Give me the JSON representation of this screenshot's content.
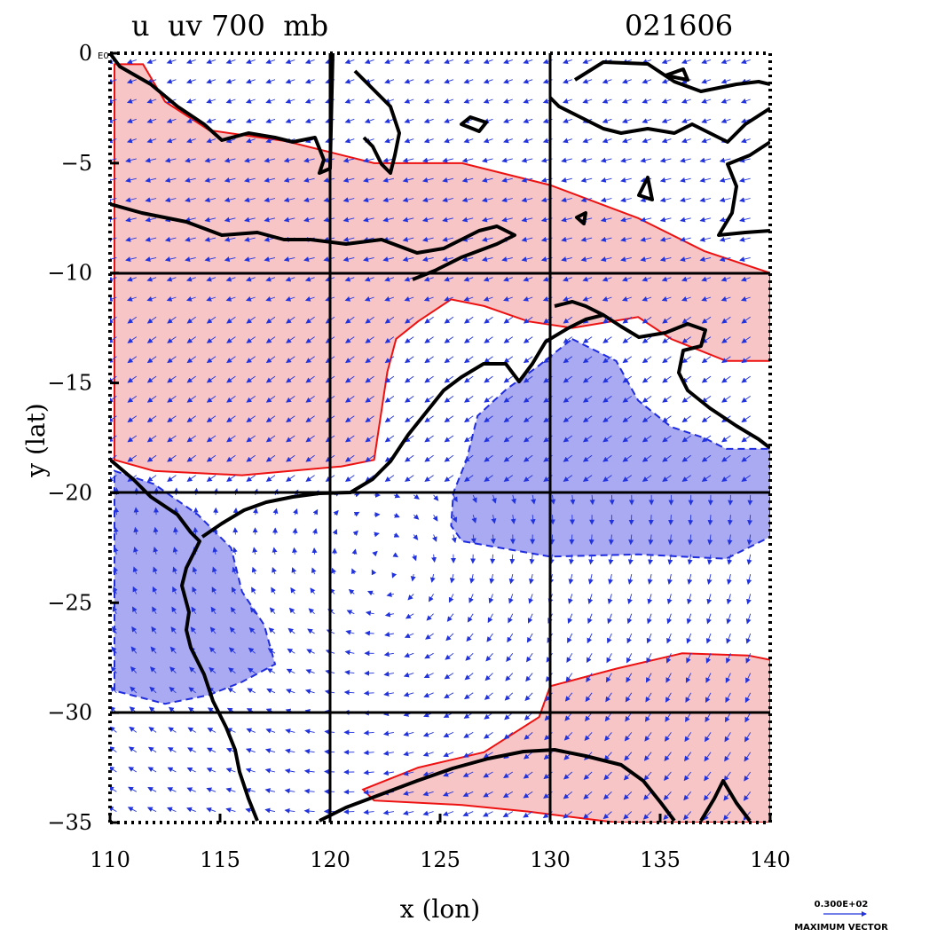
{
  "title": {
    "left": "u  uv 700  mb",
    "right": "021606"
  },
  "axes": {
    "xlabel": "x (lon)",
    "ylabel": "y (lat)",
    "x_ticks": [
      "110",
      "115",
      "120",
      "125",
      "130",
      "135",
      "140"
    ],
    "y_ticks": [
      "0",
      "−5",
      "−10",
      "−15",
      "−20",
      "−25",
      "−30",
      "−35"
    ],
    "corner_exponent": "E0"
  },
  "legend": {
    "value": "0.300E+02",
    "label": "MAXIMUM VECTOR"
  },
  "colors": {
    "positive_fill": "#f7c5c5",
    "positive_line": "#ee1111",
    "negative_fill": "#a9aaf2",
    "negative_line": "#1f2ce0",
    "vector": "#2233dd",
    "coast": "#000000"
  },
  "chart_data": {
    "type": "map",
    "xlim": [
      110,
      140
    ],
    "ylim": [
      -35,
      0
    ],
    "grid_lines": {
      "lon": [
        120,
        130
      ],
      "lat": [
        -10,
        -20,
        -30
      ]
    },
    "field": "u wind (700 mb) with uv vectors",
    "positive_regions": [
      {
        "name": "north band",
        "polygon": [
          [
            110.2,
            -0.5
          ],
          [
            111.5,
            -0.5
          ],
          [
            112.5,
            -2.2
          ],
          [
            114.5,
            -3.5
          ],
          [
            118,
            -4
          ],
          [
            122,
            -5
          ],
          [
            126,
            -5
          ],
          [
            130,
            -6
          ],
          [
            134,
            -7.5
          ],
          [
            137,
            -9
          ],
          [
            140,
            -10
          ],
          [
            140,
            -14
          ],
          [
            138,
            -14
          ],
          [
            135.5,
            -13
          ],
          [
            134,
            -12
          ],
          [
            131,
            -12.5
          ],
          [
            129,
            -12.2
          ],
          [
            127,
            -11.5
          ],
          [
            125.5,
            -11.2
          ],
          [
            124,
            -12.2
          ],
          [
            123,
            -13
          ],
          [
            122.6,
            -14.5
          ],
          [
            122,
            -18.5
          ],
          [
            120.5,
            -18.8
          ],
          [
            116,
            -19.2
          ],
          [
            112,
            -19
          ],
          [
            110.2,
            -18.5
          ]
        ]
      },
      {
        "name": "south band",
        "polygon": [
          [
            130,
            -28.8
          ],
          [
            133,
            -28
          ],
          [
            136,
            -27.3
          ],
          [
            139,
            -27.4
          ],
          [
            140,
            -27.6
          ],
          [
            140,
            -35
          ],
          [
            133,
            -35
          ],
          [
            129,
            -34.5
          ],
          [
            126,
            -34.2
          ],
          [
            122,
            -34
          ],
          [
            121.5,
            -33.5
          ],
          [
            124,
            -32.5
          ],
          [
            127,
            -31.8
          ],
          [
            129.5,
            -30.2
          ]
        ]
      }
    ],
    "negative_regions": [
      {
        "name": "northeast low",
        "polygon": [
          [
            131,
            -13
          ],
          [
            133,
            -14
          ],
          [
            134,
            -15.8
          ],
          [
            135.5,
            -17
          ],
          [
            137,
            -17.5
          ],
          [
            138,
            -18
          ],
          [
            140,
            -18
          ],
          [
            140,
            -22
          ],
          [
            138,
            -23
          ],
          [
            134,
            -22.8
          ],
          [
            130,
            -22.9
          ],
          [
            126,
            -22.2
          ],
          [
            125.5,
            -21.5
          ],
          [
            125.6,
            -20
          ],
          [
            126.2,
            -18.5
          ],
          [
            126.7,
            -16.5
          ],
          [
            128,
            -15.3
          ],
          [
            129.5,
            -14.2
          ]
        ]
      },
      {
        "name": "southwest low",
        "polygon": [
          [
            110.2,
            -19
          ],
          [
            112,
            -19.6
          ],
          [
            114,
            -21
          ],
          [
            115.5,
            -22.5
          ],
          [
            116,
            -24.5
          ],
          [
            117,
            -26
          ],
          [
            117.5,
            -27.8
          ],
          [
            116,
            -28.6
          ],
          [
            114.5,
            -29.2
          ],
          [
            112.5,
            -29.6
          ],
          [
            110.2,
            -29
          ]
        ]
      }
    ],
    "vector_max": "0.300E+02"
  }
}
